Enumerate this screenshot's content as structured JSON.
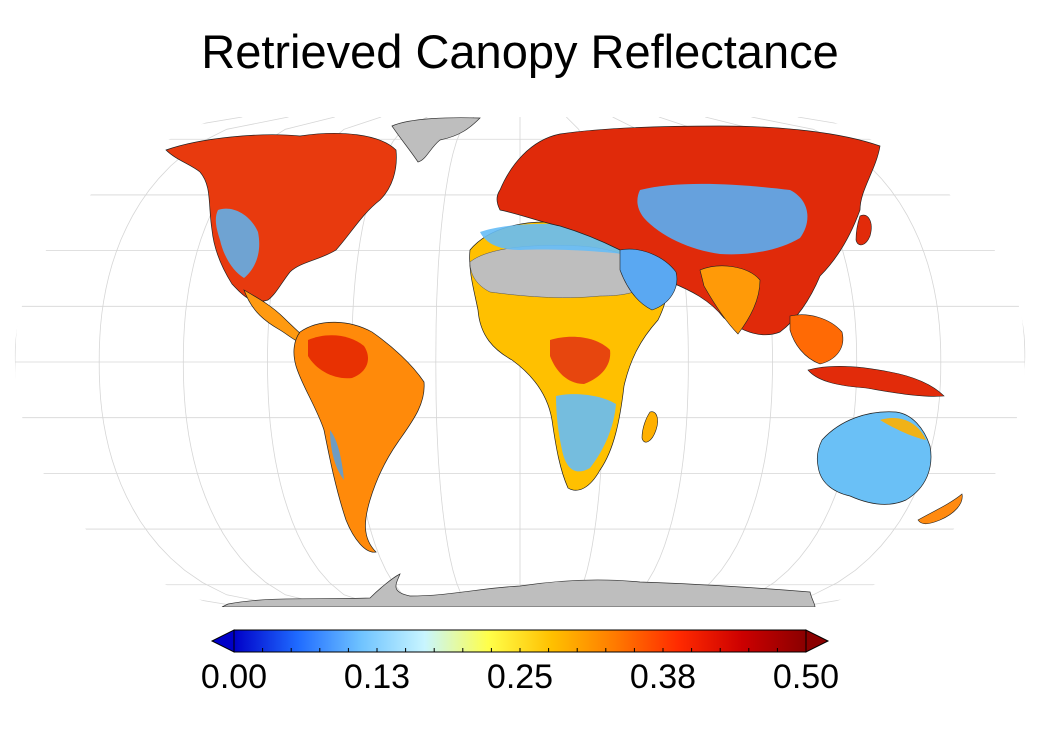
{
  "title": "Retrieved Canopy Reflectance",
  "colorbar": {
    "ticks": [
      "0.00",
      "0.13",
      "0.25",
      "0.38",
      "0.50"
    ],
    "min": 0.0,
    "max": 0.5,
    "colors": [
      "#0000c8",
      "#1f6bff",
      "#6fc3ff",
      "#c8f5ff",
      "#ffff4a",
      "#ffc000",
      "#ff7a00",
      "#ff2a00",
      "#cc0000",
      "#8a0000"
    ],
    "extend_under_color": "#0000c8",
    "extend_over_color": "#8a0000"
  },
  "map": {
    "projection": "Robinson",
    "ocean_color": "#ffffff",
    "no_data_color": "#bebebe",
    "graticule_color": "#d0d0d0"
  }
}
